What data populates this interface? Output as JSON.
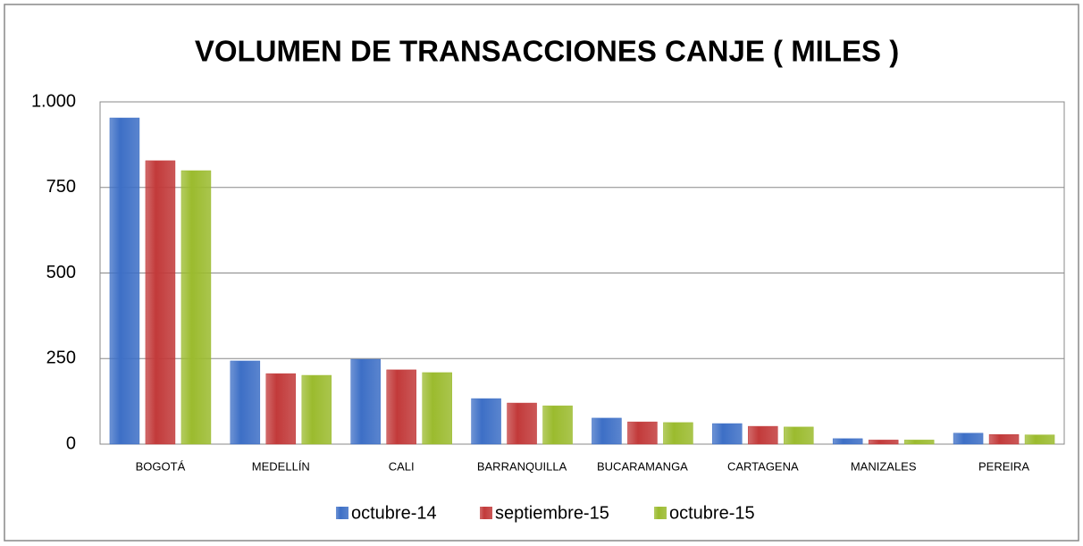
{
  "chart_data": {
    "type": "bar",
    "title": "VOLUMEN DE TRANSACCIONES CANJE ( MILES )",
    "categories": [
      "BOGOTÁ",
      "MEDELLÍN",
      "CALI",
      "BARRANQUILLA",
      "BUCARAMANGA",
      "CARTAGENA",
      "MANIZALES",
      "PEREIRA"
    ],
    "series": [
      {
        "name": "octubre-14",
        "color": "#3d6fc6",
        "values": [
          953,
          243,
          248,
          133,
          76,
          60,
          16,
          32
        ]
      },
      {
        "name": "septiembre-15",
        "color": "#c23a3a",
        "values": [
          828,
          206,
          217,
          120,
          65,
          52,
          12,
          28
        ]
      },
      {
        "name": "octubre-15",
        "color": "#9bbb2e",
        "values": [
          799,
          201,
          209,
          112,
          63,
          50,
          12,
          27
        ]
      }
    ],
    "ylim": [
      0,
      1000
    ],
    "yticks": [
      0,
      250,
      500,
      750,
      {
        "value": 1000,
        "label": "1.000"
      }
    ],
    "grid": true,
    "legend": "bottom"
  }
}
